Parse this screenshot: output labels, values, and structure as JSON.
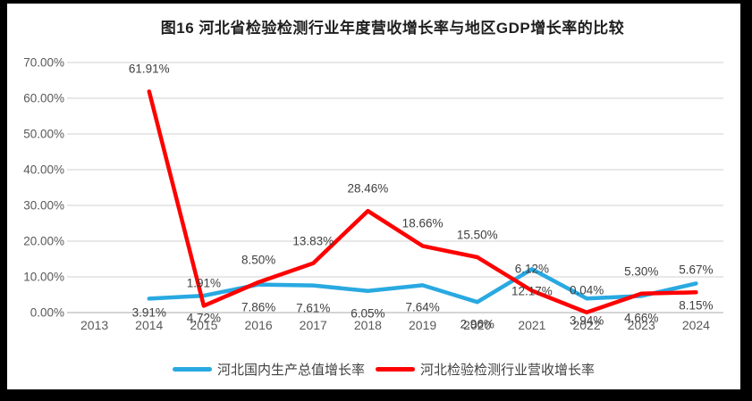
{
  "title": "图16 河北省检验检测行业年度营收增长率与地区GDP增长率的比较",
  "colors": {
    "gdp_line": "#29A9E1",
    "revenue_line": "#FF0000",
    "gridline": "#D9D9D9",
    "axis_line": "#C6C6C6",
    "tick_text": "#595959",
    "data_label_text": "#404040",
    "chart_background": "#FFFFFF",
    "frame_background": "#000000"
  },
  "chart_data": {
    "type": "line",
    "title": "图16 河北省检验检测行业年度营收增长率与地区GDP增长率的比较",
    "categories": [
      "2013",
      "2014",
      "2015",
      "2016",
      "2017",
      "2018",
      "2019",
      "2020",
      "2021",
      "2022",
      "2023",
      "2024"
    ],
    "series": [
      {
        "name": "河北国内生产总值增长率",
        "color": "#29A9E1",
        "label_position": "below",
        "values": [
          null,
          3.91,
          4.72,
          7.86,
          7.61,
          6.05,
          7.64,
          2.96,
          12.17,
          3.94,
          4.66,
          8.15
        ],
        "labels": [
          null,
          "3.91%",
          "4.72%",
          "7.86%",
          "7.61%",
          "6.05%",
          "7.64%",
          "2.96%",
          "12.17%",
          "3.94%",
          "4.66%",
          "8.15%"
        ]
      },
      {
        "name": "河北检验检测行业营收增长率",
        "color": "#FF0000",
        "label_position": "above",
        "values": [
          null,
          61.91,
          1.91,
          8.5,
          13.83,
          28.46,
          18.66,
          15.5,
          6.12,
          0.04,
          5.3,
          5.67
        ],
        "labels": [
          null,
          "61.91%",
          "1.91%",
          "8.50%",
          "13.83%",
          "28.46%",
          "18.66%",
          "15.50%",
          "6.12%",
          "0.04%",
          "5.30%",
          "5.67%"
        ]
      }
    ],
    "y_axis": {
      "min": 0,
      "max": 70,
      "step": 10,
      "tick_labels": [
        "0.00%",
        "10.00%",
        "20.00%",
        "30.00%",
        "40.00%",
        "50.00%",
        "60.00%",
        "70.00%"
      ]
    },
    "x_axis": {
      "tick_labels": [
        "2013",
        "2014",
        "2015",
        "2016",
        "2017",
        "2018",
        "2019",
        "2020",
        "2021",
        "2022",
        "2023",
        "2024"
      ]
    },
    "grid": true,
    "legend_position": "bottom"
  },
  "legend": {
    "items": [
      {
        "label": "河北国内生产总值增长率",
        "color": "#29A9E1"
      },
      {
        "label": "河北检验检测行业营收增长率",
        "color": "#FF0000"
      }
    ]
  }
}
